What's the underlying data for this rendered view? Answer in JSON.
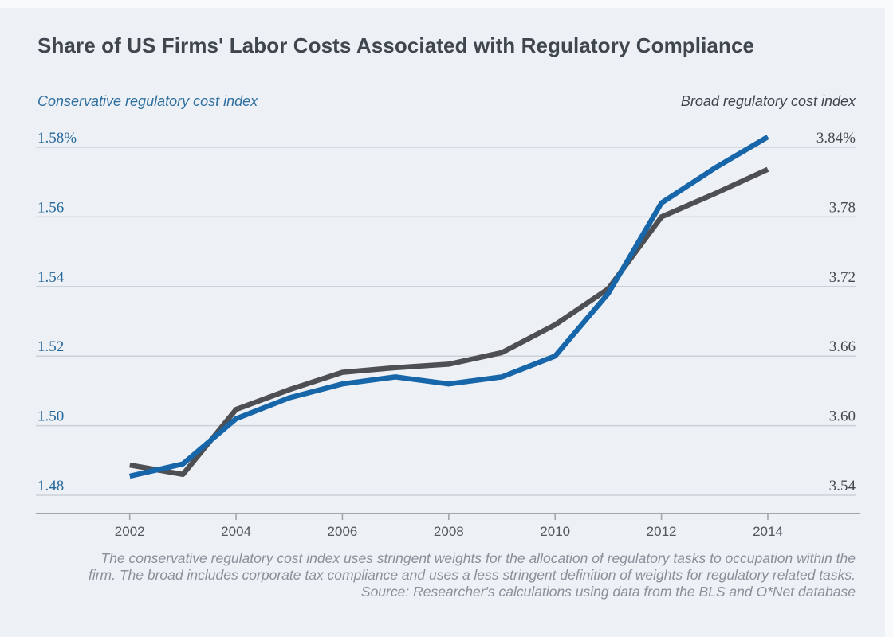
{
  "footnote": {
    "lines": [
      "The conservative regulatory cost index uses stringent weights for the allocation of regulatory tasks to occupation within the",
      "firm. The broad includes corporate tax compliance and uses a less stringent definition of weights for regulatory related tasks.",
      "Source: Researcher's calculations using data from the BLS and O*Net database"
    ]
  },
  "colors": {
    "conservative_line": "#1766a9",
    "broad_line": "#4d4f52",
    "left_axis_text": "#27689a",
    "right_axis_text": "#46494e",
    "grid": "#ccd1d7",
    "axis": "#a3a7ac",
    "year_text": "#54585d",
    "background": "#edf1f6"
  },
  "chart_data": {
    "type": "line",
    "title": "Share of US Firms' Labor Costs Associated with Regulatory Compliance",
    "x": [
      2002,
      2003,
      2004,
      2005,
      2006,
      2007,
      2008,
      2009,
      2010,
      2011,
      2012,
      2013,
      2014
    ],
    "x_tick_labels": [
      "2002",
      "2004",
      "2006",
      "2008",
      "2010",
      "2012",
      "2014"
    ],
    "grid": true,
    "legend_position": "top",
    "left_axis": {
      "label": "Conservative regulatory cost index",
      "range": [
        1.48,
        1.58
      ],
      "ticks": [
        {
          "label": "1.58%",
          "value": 1.58
        },
        {
          "label": "1.56",
          "value": 1.56
        },
        {
          "label": "1.54",
          "value": 1.54
        },
        {
          "label": "1.52",
          "value": 1.52
        },
        {
          "label": "1.50",
          "value": 1.5
        },
        {
          "label": "1.48",
          "value": 1.48
        }
      ]
    },
    "right_axis": {
      "label": "Broad regulatory cost index",
      "range": [
        3.54,
        3.84
      ],
      "ticks": [
        {
          "label": "3.84%",
          "value": 3.84
        },
        {
          "label": "3.78",
          "value": 3.78
        },
        {
          "label": "3.72",
          "value": 3.72
        },
        {
          "label": "3.66",
          "value": 3.66
        },
        {
          "label": "3.60",
          "value": 3.6
        },
        {
          "label": "3.54",
          "value": 3.54
        }
      ]
    },
    "series": [
      {
        "id": "broad",
        "name": "Broad regulatory cost index",
        "axis": "right",
        "color": "#4d4f52",
        "values": [
          3.566,
          3.558,
          3.614,
          3.631,
          3.646,
          3.65,
          3.653,
          3.663,
          3.687,
          3.718,
          3.78,
          3.8,
          3.821
        ]
      },
      {
        "id": "conservative",
        "name": "Conservative regulatory cost index",
        "axis": "left",
        "color": "#1766a9",
        "values": [
          1.4855,
          1.489,
          1.502,
          1.508,
          1.512,
          1.514,
          1.512,
          1.514,
          1.52,
          1.538,
          1.564,
          1.574,
          1.583
        ]
      }
    ]
  }
}
